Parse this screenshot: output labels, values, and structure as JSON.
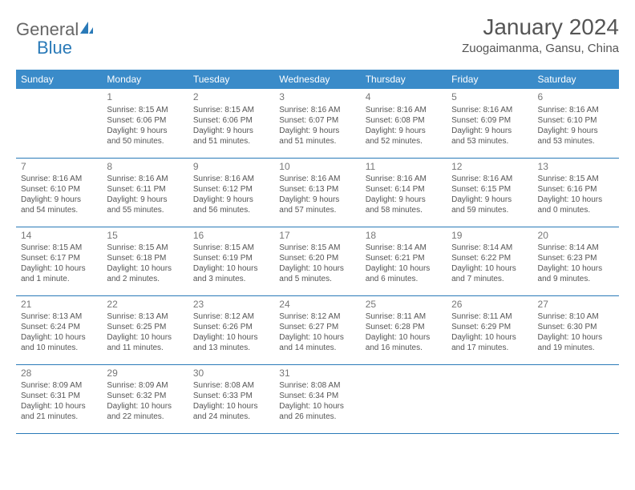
{
  "logo": {
    "part1": "General",
    "part2": "Blue"
  },
  "title": "January 2024",
  "location": "Zuogaimanma, Gansu, China",
  "colors": {
    "header_bg": "#3a8bc9",
    "header_text": "#ffffff",
    "border": "#2a7ab8",
    "text": "#555555",
    "daynum": "#777777",
    "logo_gray": "#666666",
    "logo_blue": "#2a7ab8"
  },
  "weekdays": [
    "Sunday",
    "Monday",
    "Tuesday",
    "Wednesday",
    "Thursday",
    "Friday",
    "Saturday"
  ],
  "weeks": [
    [
      null,
      {
        "n": "1",
        "sr": "Sunrise: 8:15 AM",
        "ss": "Sunset: 6:06 PM",
        "dl1": "Daylight: 9 hours",
        "dl2": "and 50 minutes."
      },
      {
        "n": "2",
        "sr": "Sunrise: 8:15 AM",
        "ss": "Sunset: 6:06 PM",
        "dl1": "Daylight: 9 hours",
        "dl2": "and 51 minutes."
      },
      {
        "n": "3",
        "sr": "Sunrise: 8:16 AM",
        "ss": "Sunset: 6:07 PM",
        "dl1": "Daylight: 9 hours",
        "dl2": "and 51 minutes."
      },
      {
        "n": "4",
        "sr": "Sunrise: 8:16 AM",
        "ss": "Sunset: 6:08 PM",
        "dl1": "Daylight: 9 hours",
        "dl2": "and 52 minutes."
      },
      {
        "n": "5",
        "sr": "Sunrise: 8:16 AM",
        "ss": "Sunset: 6:09 PM",
        "dl1": "Daylight: 9 hours",
        "dl2": "and 53 minutes."
      },
      {
        "n": "6",
        "sr": "Sunrise: 8:16 AM",
        "ss": "Sunset: 6:10 PM",
        "dl1": "Daylight: 9 hours",
        "dl2": "and 53 minutes."
      }
    ],
    [
      {
        "n": "7",
        "sr": "Sunrise: 8:16 AM",
        "ss": "Sunset: 6:10 PM",
        "dl1": "Daylight: 9 hours",
        "dl2": "and 54 minutes."
      },
      {
        "n": "8",
        "sr": "Sunrise: 8:16 AM",
        "ss": "Sunset: 6:11 PM",
        "dl1": "Daylight: 9 hours",
        "dl2": "and 55 minutes."
      },
      {
        "n": "9",
        "sr": "Sunrise: 8:16 AM",
        "ss": "Sunset: 6:12 PM",
        "dl1": "Daylight: 9 hours",
        "dl2": "and 56 minutes."
      },
      {
        "n": "10",
        "sr": "Sunrise: 8:16 AM",
        "ss": "Sunset: 6:13 PM",
        "dl1": "Daylight: 9 hours",
        "dl2": "and 57 minutes."
      },
      {
        "n": "11",
        "sr": "Sunrise: 8:16 AM",
        "ss": "Sunset: 6:14 PM",
        "dl1": "Daylight: 9 hours",
        "dl2": "and 58 minutes."
      },
      {
        "n": "12",
        "sr": "Sunrise: 8:16 AM",
        "ss": "Sunset: 6:15 PM",
        "dl1": "Daylight: 9 hours",
        "dl2": "and 59 minutes."
      },
      {
        "n": "13",
        "sr": "Sunrise: 8:15 AM",
        "ss": "Sunset: 6:16 PM",
        "dl1": "Daylight: 10 hours",
        "dl2": "and 0 minutes."
      }
    ],
    [
      {
        "n": "14",
        "sr": "Sunrise: 8:15 AM",
        "ss": "Sunset: 6:17 PM",
        "dl1": "Daylight: 10 hours",
        "dl2": "and 1 minute."
      },
      {
        "n": "15",
        "sr": "Sunrise: 8:15 AM",
        "ss": "Sunset: 6:18 PM",
        "dl1": "Daylight: 10 hours",
        "dl2": "and 2 minutes."
      },
      {
        "n": "16",
        "sr": "Sunrise: 8:15 AM",
        "ss": "Sunset: 6:19 PM",
        "dl1": "Daylight: 10 hours",
        "dl2": "and 3 minutes."
      },
      {
        "n": "17",
        "sr": "Sunrise: 8:15 AM",
        "ss": "Sunset: 6:20 PM",
        "dl1": "Daylight: 10 hours",
        "dl2": "and 5 minutes."
      },
      {
        "n": "18",
        "sr": "Sunrise: 8:14 AM",
        "ss": "Sunset: 6:21 PM",
        "dl1": "Daylight: 10 hours",
        "dl2": "and 6 minutes."
      },
      {
        "n": "19",
        "sr": "Sunrise: 8:14 AM",
        "ss": "Sunset: 6:22 PM",
        "dl1": "Daylight: 10 hours",
        "dl2": "and 7 minutes."
      },
      {
        "n": "20",
        "sr": "Sunrise: 8:14 AM",
        "ss": "Sunset: 6:23 PM",
        "dl1": "Daylight: 10 hours",
        "dl2": "and 9 minutes."
      }
    ],
    [
      {
        "n": "21",
        "sr": "Sunrise: 8:13 AM",
        "ss": "Sunset: 6:24 PM",
        "dl1": "Daylight: 10 hours",
        "dl2": "and 10 minutes."
      },
      {
        "n": "22",
        "sr": "Sunrise: 8:13 AM",
        "ss": "Sunset: 6:25 PM",
        "dl1": "Daylight: 10 hours",
        "dl2": "and 11 minutes."
      },
      {
        "n": "23",
        "sr": "Sunrise: 8:12 AM",
        "ss": "Sunset: 6:26 PM",
        "dl1": "Daylight: 10 hours",
        "dl2": "and 13 minutes."
      },
      {
        "n": "24",
        "sr": "Sunrise: 8:12 AM",
        "ss": "Sunset: 6:27 PM",
        "dl1": "Daylight: 10 hours",
        "dl2": "and 14 minutes."
      },
      {
        "n": "25",
        "sr": "Sunrise: 8:11 AM",
        "ss": "Sunset: 6:28 PM",
        "dl1": "Daylight: 10 hours",
        "dl2": "and 16 minutes."
      },
      {
        "n": "26",
        "sr": "Sunrise: 8:11 AM",
        "ss": "Sunset: 6:29 PM",
        "dl1": "Daylight: 10 hours",
        "dl2": "and 17 minutes."
      },
      {
        "n": "27",
        "sr": "Sunrise: 8:10 AM",
        "ss": "Sunset: 6:30 PM",
        "dl1": "Daylight: 10 hours",
        "dl2": "and 19 minutes."
      }
    ],
    [
      {
        "n": "28",
        "sr": "Sunrise: 8:09 AM",
        "ss": "Sunset: 6:31 PM",
        "dl1": "Daylight: 10 hours",
        "dl2": "and 21 minutes."
      },
      {
        "n": "29",
        "sr": "Sunrise: 8:09 AM",
        "ss": "Sunset: 6:32 PM",
        "dl1": "Daylight: 10 hours",
        "dl2": "and 22 minutes."
      },
      {
        "n": "30",
        "sr": "Sunrise: 8:08 AM",
        "ss": "Sunset: 6:33 PM",
        "dl1": "Daylight: 10 hours",
        "dl2": "and 24 minutes."
      },
      {
        "n": "31",
        "sr": "Sunrise: 8:08 AM",
        "ss": "Sunset: 6:34 PM",
        "dl1": "Daylight: 10 hours",
        "dl2": "and 26 minutes."
      },
      null,
      null,
      null
    ]
  ]
}
